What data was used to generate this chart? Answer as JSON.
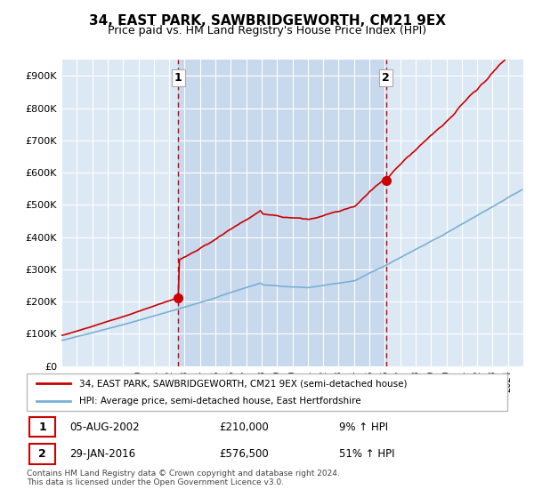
{
  "title": "34, EAST PARK, SAWBRIDGEWORTH, CM21 9EX",
  "subtitle": "Price paid vs. HM Land Registry's House Price Index (HPI)",
  "legend_line1": "34, EAST PARK, SAWBRIDGEWORTH, CM21 9EX (semi-detached house)",
  "legend_line2": "HPI: Average price, semi-detached house, East Hertfordshire",
  "transaction1_date": "05-AUG-2002",
  "transaction1_price": "£210,000",
  "transaction1_hpi": "9% ↑ HPI",
  "transaction2_date": "29-JAN-2016",
  "transaction2_price": "£576,500",
  "transaction2_hpi": "51% ↑ HPI",
  "footer": "Contains HM Land Registry data © Crown copyright and database right 2024.\nThis data is licensed under the Open Government Licence v3.0.",
  "price_color": "#cc0000",
  "hpi_color": "#7ab0d4",
  "vline_color": "#cc0000",
  "fill_color": "#c8d9ed",
  "marker1_year": 2002.583,
  "marker2_year": 2016.083,
  "marker1_price": 210000,
  "marker2_price": 576500,
  "ylim": [
    0,
    950000
  ],
  "xlim_start": 1995,
  "xlim_end": 2025,
  "plot_bg": "#dce9f5",
  "fig_bg": "#ffffff",
  "grid_color": "#ffffff",
  "yticks": [
    0,
    100000,
    200000,
    300000,
    400000,
    500000,
    600000,
    700000,
    800000,
    900000
  ]
}
